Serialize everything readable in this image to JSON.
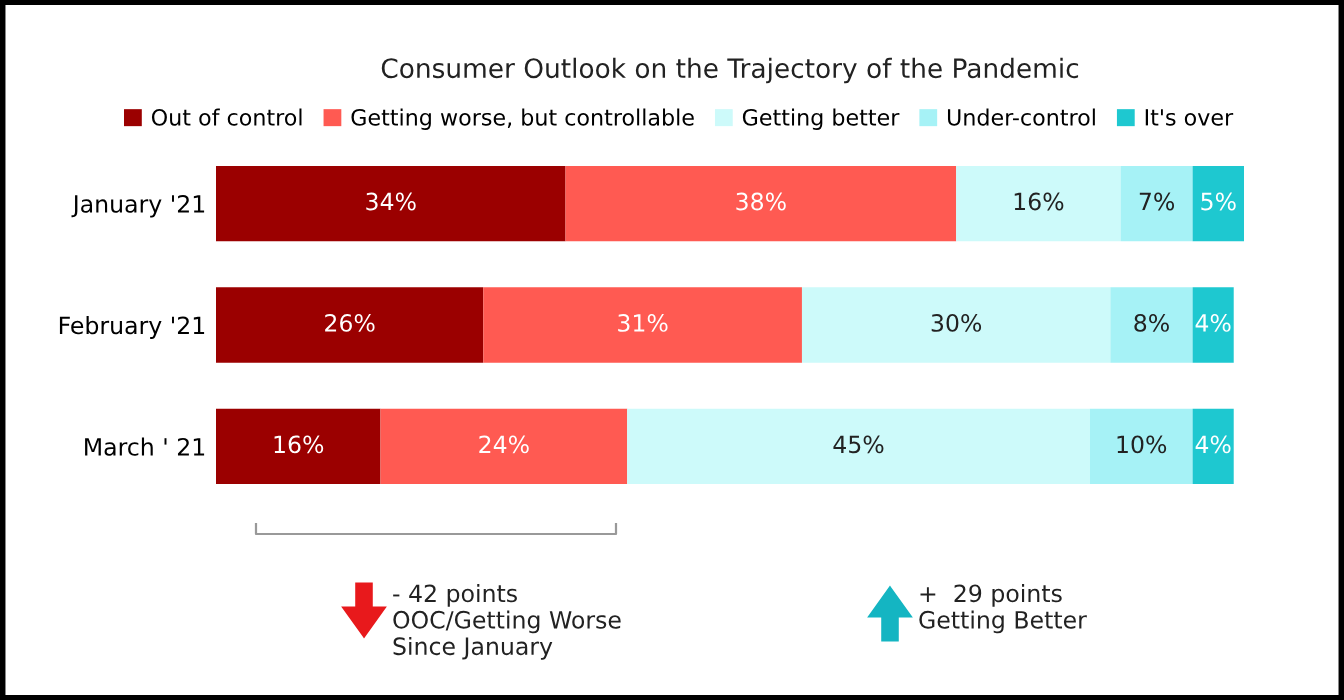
{
  "chart_data": {
    "type": "bar",
    "orientation": "horizontal",
    "stacked": true,
    "title": "Consumer Outlook on the Trajectory of the Pandemic",
    "categories": [
      "January '21",
      "February '21",
      "March ' 21"
    ],
    "series": [
      {
        "name": "Out of control",
        "color": "#9b0000",
        "values": [
          34,
          26,
          16
        ],
        "value_labels": [
          "34%",
          "26%",
          "16%"
        ]
      },
      {
        "name": "Getting worse, but controllable",
        "color": "#ff5a52",
        "values": [
          38,
          31,
          24
        ],
        "value_labels": [
          "38%",
          "31%",
          "24%"
        ]
      },
      {
        "name": "Getting better",
        "color": "#cdfafa",
        "values": [
          16,
          30,
          45
        ],
        "value_labels": [
          "16%",
          "30%",
          "45%"
        ]
      },
      {
        "name": "Under-control",
        "color": "#a6f2f6",
        "values": [
          7,
          8,
          10
        ],
        "value_labels": [
          "7%",
          "8%",
          "10%"
        ]
      },
      {
        "name": "It's over",
        "color": "#1ec8d0",
        "values": [
          5,
          4,
          4
        ],
        "value_labels": [
          "5%",
          "4%",
          "4%"
        ]
      }
    ],
    "legend": "top",
    "grid": false,
    "annotations": [
      "- 42 points\nOOC/Getting Worse\nSince January",
      "+  29 points\nGetting Better"
    ]
  }
}
